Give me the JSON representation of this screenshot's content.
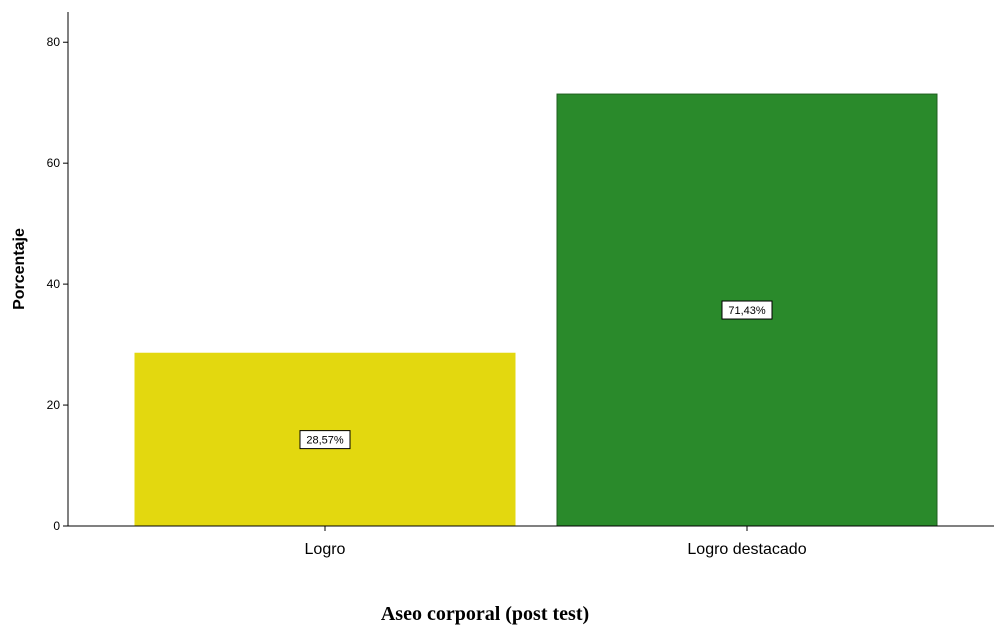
{
  "chart_data": {
    "type": "bar",
    "categories": [
      "Logro",
      "Logro destacado"
    ],
    "values": [
      28.57,
      71.43
    ],
    "data_labels": [
      "28,57%",
      "71,43%"
    ],
    "colors": [
      "#E3D80F",
      "#2A8A2B"
    ],
    "xlabel": "Aseo corporal (post test)",
    "ylabel": "Porcentaje",
    "ylim": [
      0,
      85
    ],
    "yticks": [
      0,
      20,
      40,
      60,
      80
    ],
    "grid": false,
    "legend": "none"
  }
}
